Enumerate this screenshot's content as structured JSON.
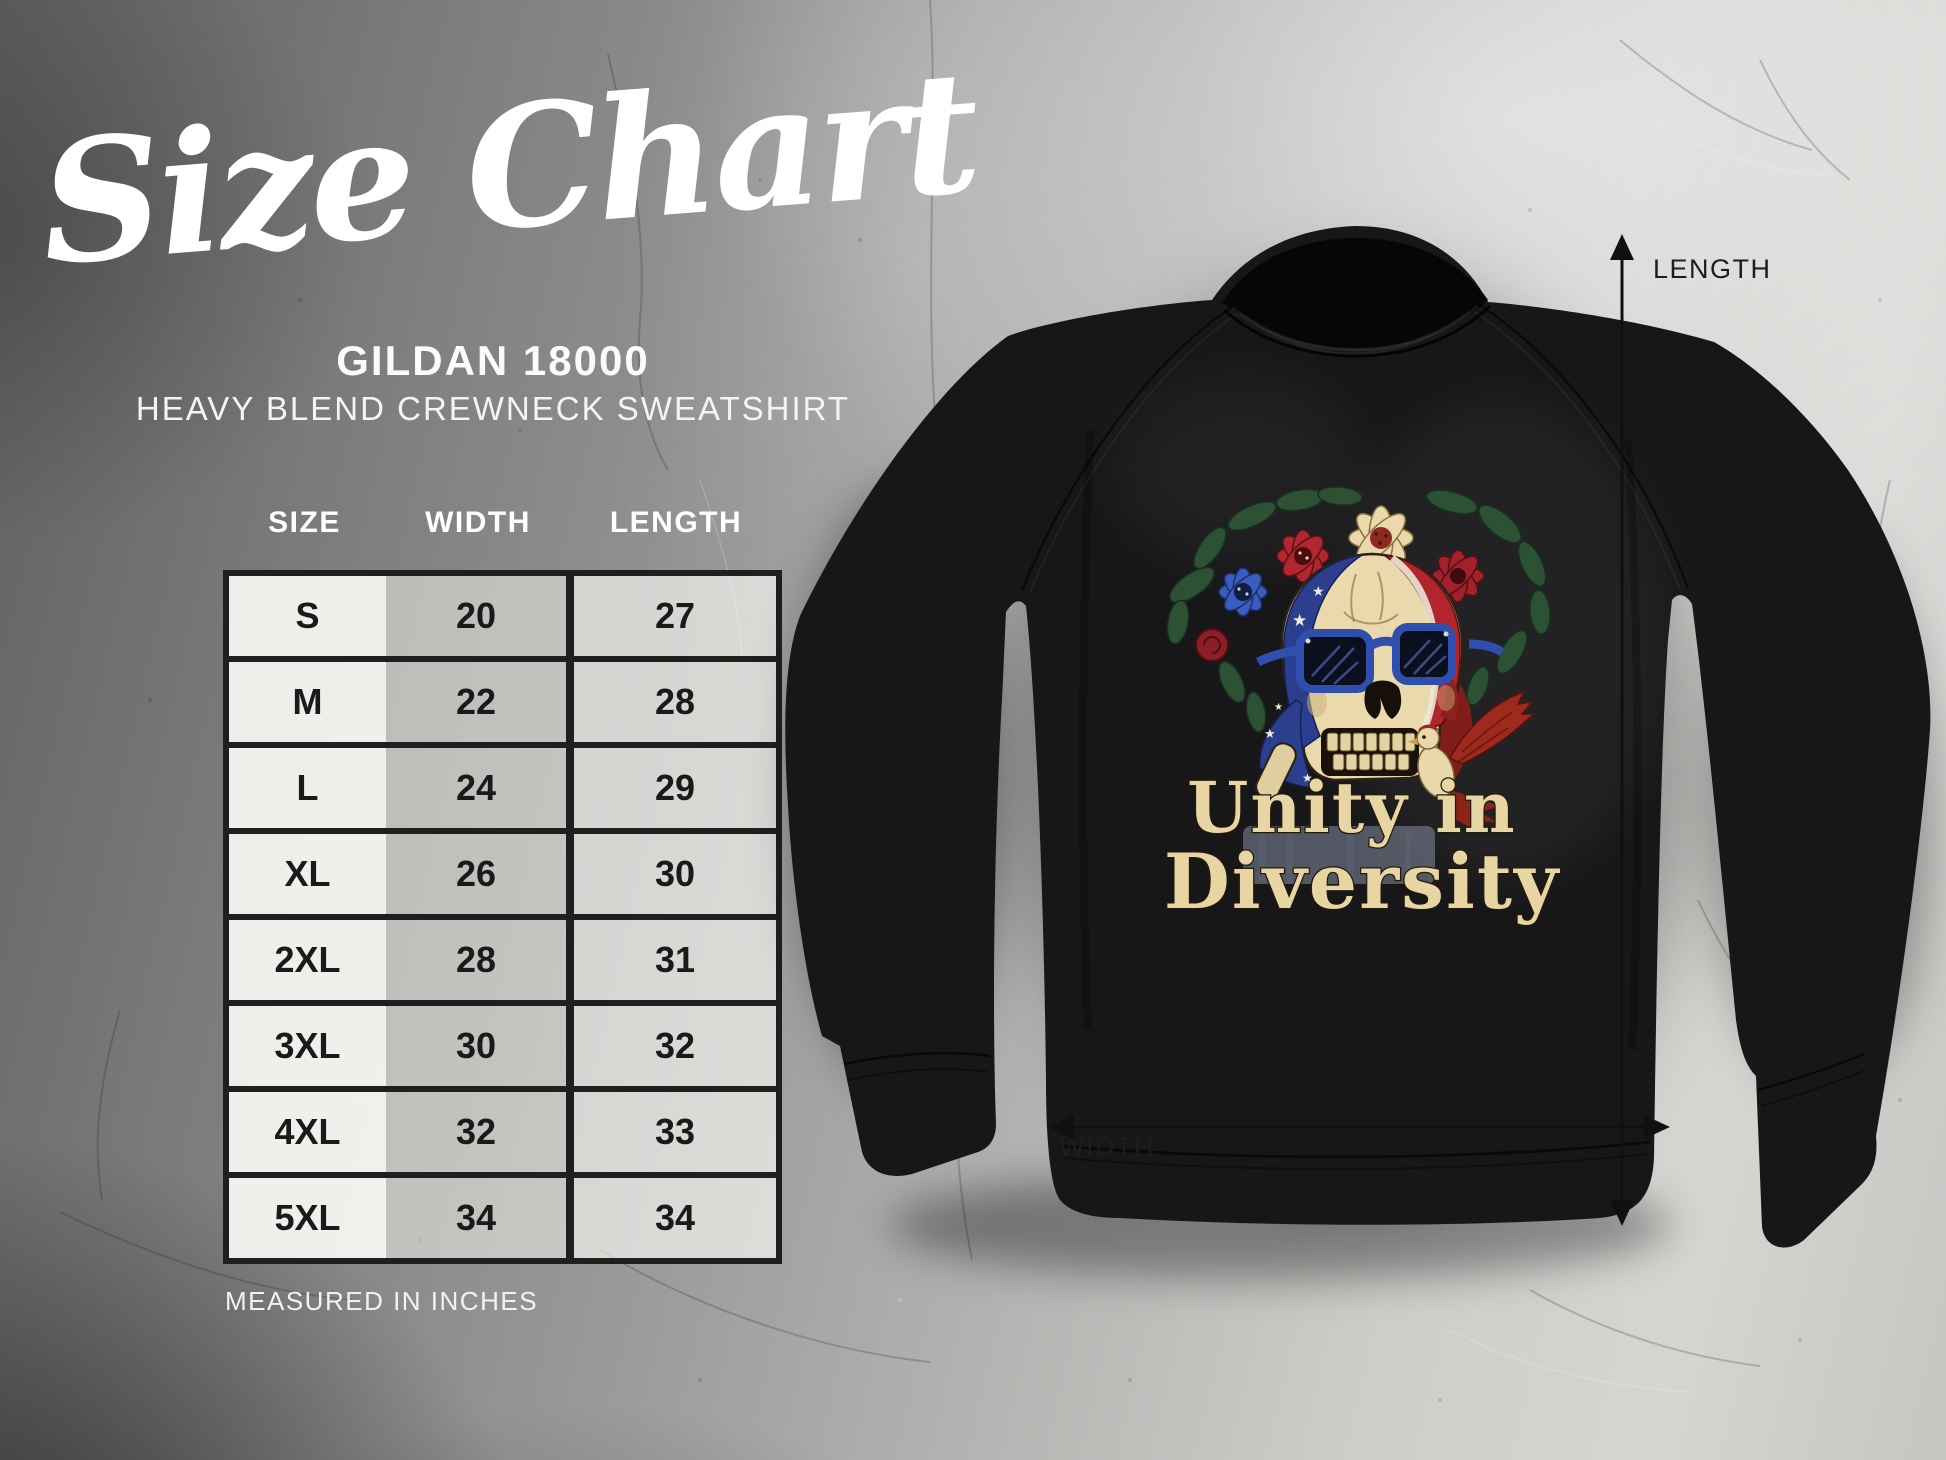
{
  "page": {
    "title": "Size Chart"
  },
  "product": {
    "model": "GILDAN 18000",
    "name": "HEAVY BLEND CREWNECK SWEATSHIRT"
  },
  "labels": {
    "length": "LENGTH",
    "width": "WIDTH"
  },
  "design": {
    "line1": "Unity in",
    "line2": "Diversity"
  },
  "chart_data": {
    "type": "table",
    "title": "Size Chart",
    "subtitle": "GILDAN 18000 HEAVY BLEND CREWNECK SWEATSHIRT",
    "columns": [
      "SIZE",
      "WIDTH",
      "LENGTH"
    ],
    "units": "inches",
    "footnote": "MEASURED IN INCHES",
    "rows": [
      [
        "S",
        20,
        27
      ],
      [
        "M",
        22,
        28
      ],
      [
        "L",
        24,
        29
      ],
      [
        "XL",
        26,
        30
      ],
      [
        "2XL",
        28,
        31
      ],
      [
        "3XL",
        30,
        32
      ],
      [
        "4XL",
        32,
        33
      ],
      [
        "5XL",
        34,
        34
      ]
    ]
  },
  "colors": {
    "heading_text": "#ffffff",
    "table_border": "#1f1f1f",
    "table_text": "#1a1a1a",
    "dim_label_text": "#1d1d1d",
    "sweatshirt": "#17171a",
    "design_cream": "#e7d6a4",
    "glasses_blue": "#2f4fae",
    "flag_blue": "#2c3e8e",
    "flag_red": "#b0262c",
    "bg_dark": "#5f5e5d",
    "bg_light": "#d7d5d2"
  }
}
